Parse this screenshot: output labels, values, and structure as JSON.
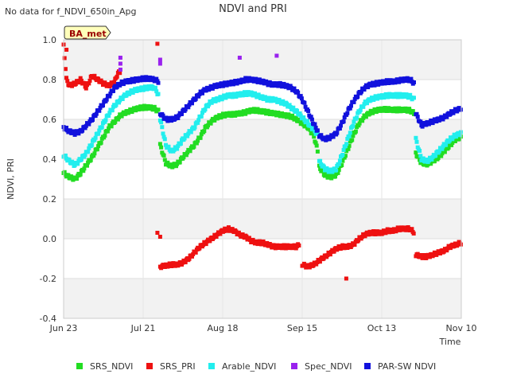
{
  "note": "No data for f_NDVI_650in_Apg",
  "badge": "BA_met",
  "chart_data": {
    "type": "scatter",
    "title": "NDVI and PRI",
    "xlabel": "Time",
    "ylabel": "NDVI, PRI",
    "xlim": [
      0,
      140
    ],
    "ylim": [
      -0.4,
      1.0
    ],
    "yticks": [
      -0.4,
      -0.2,
      0.0,
      0.2,
      0.4,
      0.6,
      0.8,
      1.0
    ],
    "ytick_labels": [
      "-0.4",
      "-0.2",
      "0.0",
      "0.2",
      "0.4",
      "0.6",
      "0.8",
      "1.0"
    ],
    "xticks": [
      0,
      28,
      56,
      84,
      112,
      140
    ],
    "xtick_labels": [
      "Jun 23",
      "Jul 21",
      "Aug 18",
      "Sep 15",
      "Oct 13",
      "Nov 10"
    ],
    "x_units": "days since Jun 23",
    "series": [
      {
        "name": "SRS_NDVI",
        "color": "#22dd22",
        "marker": "square",
        "curves": [
          {
            "x": [
              0,
              2,
              4,
              6,
              8,
              10,
              12,
              14,
              16,
              18,
              20,
              22,
              24,
              26,
              28,
              30,
              32,
              33.5
            ],
            "y": [
              0.33,
              0.31,
              0.3,
              0.33,
              0.37,
              0.41,
              0.46,
              0.51,
              0.56,
              0.59,
              0.62,
              0.635,
              0.645,
              0.655,
              0.66,
              0.66,
              0.655,
              0.64
            ]
          },
          {
            "x": [
              34,
              36,
              38,
              40,
              42,
              44,
              46,
              48,
              50,
              52,
              54,
              56,
              58,
              60,
              62,
              64,
              66,
              68,
              70,
              72,
              74,
              76,
              78,
              80,
              82,
              84,
              86,
              88,
              89.5
            ],
            "y": [
              0.47,
              0.38,
              0.365,
              0.375,
              0.41,
              0.44,
              0.47,
              0.51,
              0.56,
              0.59,
              0.61,
              0.62,
              0.625,
              0.625,
              0.63,
              0.635,
              0.645,
              0.645,
              0.64,
              0.635,
              0.63,
              0.625,
              0.62,
              0.615,
              0.6,
              0.58,
              0.56,
              0.52,
              0.44
            ]
          },
          {
            "x": [
              90,
              92,
              94,
              96,
              98,
              100,
              102,
              104,
              106,
              108,
              110,
              112,
              114,
              116,
              118,
              120,
              122,
              123.5
            ],
            "y": [
              0.36,
              0.32,
              0.31,
              0.32,
              0.38,
              0.45,
              0.52,
              0.58,
              0.615,
              0.635,
              0.645,
              0.65,
              0.65,
              0.648,
              0.648,
              0.648,
              0.645,
              0.63
            ]
          },
          {
            "x": [
              124,
              126,
              128,
              130,
              132,
              134,
              136,
              138,
              140
            ],
            "y": [
              0.43,
              0.38,
              0.375,
              0.39,
              0.41,
              0.44,
              0.47,
              0.5,
              0.51
            ]
          }
        ]
      },
      {
        "name": "SRS_PRI",
        "color": "#ee1111",
        "marker": "square",
        "curves": [
          {
            "x": [
              0,
              1,
              2,
              4,
              6,
              8,
              10,
              12,
              14,
              16,
              18,
              19,
              20
            ],
            "y": [
              0.97,
              0.8,
              0.77,
              0.78,
              0.8,
              0.76,
              0.82,
              0.8,
              0.78,
              0.77,
              0.79,
              0.83,
              0.84
            ]
          },
          {
            "x": [
              34,
              36,
              38,
              40,
              42,
              44,
              46,
              48,
              50,
              52,
              54,
              56,
              58,
              60,
              62,
              64,
              66,
              68,
              70,
              72,
              74,
              76,
              78,
              80,
              82,
              83
            ],
            "y": [
              -0.14,
              -0.135,
              -0.13,
              -0.13,
              -0.12,
              -0.1,
              -0.07,
              -0.04,
              -0.02,
              0.0,
              0.02,
              0.04,
              0.05,
              0.04,
              0.02,
              0.01,
              -0.01,
              -0.02,
              -0.02,
              -0.03,
              -0.04,
              -0.04,
              -0.04,
              -0.04,
              -0.04,
              -0.03
            ]
          },
          {
            "x": [
              84,
              86,
              88,
              90,
              92,
              94,
              96,
              98,
              100,
              102,
              104,
              106,
              108,
              110,
              112,
              114,
              116,
              118,
              120,
              122,
              123.5
            ],
            "y": [
              -0.13,
              -0.14,
              -0.13,
              -0.11,
              -0.09,
              -0.07,
              -0.05,
              -0.04,
              -0.04,
              -0.03,
              0.0,
              0.02,
              0.03,
              0.03,
              0.03,
              0.04,
              0.04,
              0.05,
              0.05,
              0.05,
              0.03
            ]
          },
          {
            "x": [
              124,
              126,
              128,
              130,
              132,
              134,
              136,
              138,
              140
            ],
            "y": [
              -0.08,
              -0.09,
              -0.09,
              -0.08,
              -0.07,
              -0.06,
              -0.04,
              -0.03,
              -0.02
            ]
          }
        ],
        "points": {
          "x": [
            1,
            33,
            33,
            34,
            99.5
          ],
          "y": [
            0.95,
            0.98,
            0.03,
            0.01,
            -0.2
          ]
        }
      },
      {
        "name": "Arable_NDVI",
        "color": "#22eeee",
        "marker": "square",
        "curves": [
          {
            "x": [
              0,
              2,
              4,
              6,
              8,
              10,
              12,
              14,
              16,
              18,
              20,
              22,
              24,
              26,
              28,
              30,
              32,
              33.5
            ],
            "y": [
              0.42,
              0.39,
              0.37,
              0.4,
              0.43,
              0.48,
              0.53,
              0.58,
              0.63,
              0.67,
              0.7,
              0.725,
              0.74,
              0.75,
              0.755,
              0.76,
              0.76,
              0.72
            ]
          },
          {
            "x": [
              34,
              36,
              38,
              40,
              42,
              44,
              46,
              48,
              50,
              52,
              54,
              56,
              58,
              60,
              62,
              64,
              66,
              68,
              70,
              72,
              74,
              76,
              78,
              80,
              82,
              84,
              86,
              88,
              89.5
            ],
            "y": [
              0.6,
              0.47,
              0.44,
              0.46,
              0.5,
              0.53,
              0.56,
              0.61,
              0.66,
              0.69,
              0.7,
              0.71,
              0.72,
              0.72,
              0.725,
              0.73,
              0.73,
              0.72,
              0.71,
              0.7,
              0.7,
              0.69,
              0.68,
              0.66,
              0.64,
              0.61,
              0.58,
              0.55,
              0.52
            ]
          },
          {
            "x": [
              90,
              92,
              94,
              96,
              98,
              100,
              102,
              104,
              106,
              108,
              110,
              112,
              114,
              116,
              118,
              120,
              122,
              123.5
            ],
            "y": [
              0.39,
              0.35,
              0.34,
              0.35,
              0.42,
              0.5,
              0.58,
              0.64,
              0.68,
              0.7,
              0.71,
              0.715,
              0.72,
              0.72,
              0.72,
              0.72,
              0.715,
              0.7
            ]
          },
          {
            "x": [
              124,
              126,
              128,
              130,
              132,
              134,
              136,
              138,
              140
            ],
            "y": [
              0.5,
              0.4,
              0.39,
              0.41,
              0.44,
              0.47,
              0.5,
              0.52,
              0.53
            ]
          }
        ]
      },
      {
        "name": "Spec_NDVI",
        "color": "#9922ee",
        "marker": "square",
        "curves": [],
        "points": {
          "x": [
            20,
            20,
            20,
            34,
            34,
            62,
            75
          ],
          "y": [
            0.91,
            0.88,
            0.85,
            0.9,
            0.88,
            0.91,
            0.92
          ]
        }
      },
      {
        "name": "PAR-SW NDVI",
        "color": "#1111dd",
        "marker": "square",
        "curves": [
          {
            "x": [
              0,
              2,
              4,
              6,
              8,
              10,
              12,
              14,
              16,
              18,
              20,
              22,
              24,
              26,
              28,
              30,
              32,
              33.5
            ],
            "y": [
              0.56,
              0.54,
              0.53,
              0.54,
              0.57,
              0.6,
              0.64,
              0.68,
              0.72,
              0.76,
              0.78,
              0.79,
              0.795,
              0.8,
              0.805,
              0.805,
              0.8,
              0.79
            ]
          },
          {
            "x": [
              34,
              36,
              38,
              40,
              42,
              44,
              46,
              48,
              50,
              52,
              54,
              56,
              58,
              60,
              62,
              64,
              66,
              68,
              70,
              72,
              74,
              76,
              78,
              80,
              82,
              84,
              86,
              88,
              89.5
            ],
            "y": [
              0.63,
              0.6,
              0.6,
              0.61,
              0.64,
              0.67,
              0.7,
              0.73,
              0.75,
              0.76,
              0.77,
              0.775,
              0.78,
              0.785,
              0.79,
              0.8,
              0.8,
              0.795,
              0.79,
              0.78,
              0.775,
              0.775,
              0.77,
              0.76,
              0.74,
              0.7,
              0.64,
              0.58,
              0.54
            ]
          },
          {
            "x": [
              90,
              92,
              94,
              96,
              98,
              100,
              102,
              104,
              106,
              108,
              110,
              112,
              114,
              116,
              118,
              120,
              122,
              123.5
            ],
            "y": [
              0.52,
              0.5,
              0.51,
              0.53,
              0.58,
              0.64,
              0.69,
              0.73,
              0.76,
              0.775,
              0.78,
              0.785,
              0.79,
              0.79,
              0.795,
              0.8,
              0.8,
              0.78
            ]
          },
          {
            "x": [
              124,
              126,
              128,
              130,
              132,
              134,
              136,
              138,
              140
            ],
            "y": [
              0.63,
              0.57,
              0.58,
              0.59,
              0.6,
              0.61,
              0.63,
              0.645,
              0.655
            ]
          }
        ]
      }
    ]
  }
}
